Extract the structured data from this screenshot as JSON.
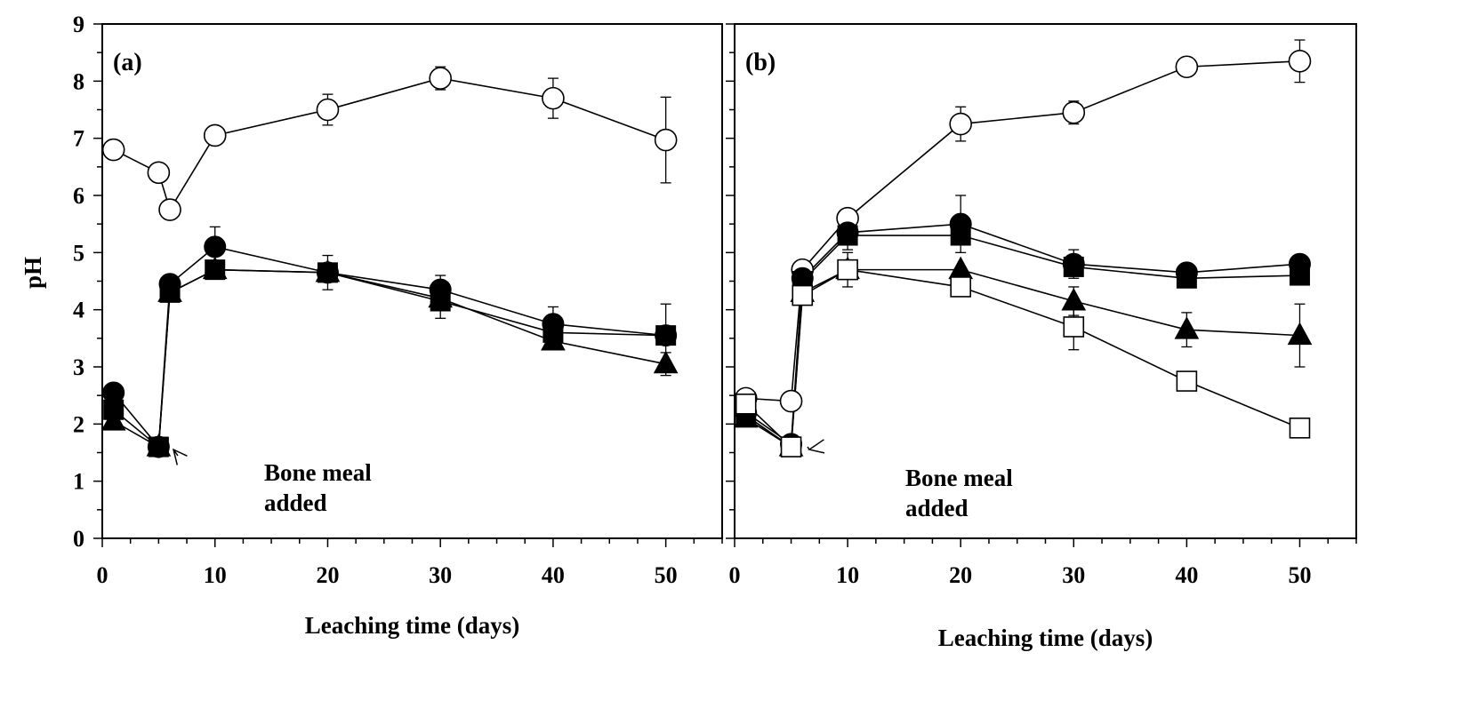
{
  "chart_data": [
    {
      "type": "line",
      "panel_label": "(a)",
      "xlabel": "Leaching time (days)",
      "ylabel": "pH",
      "xlim": [
        0,
        55
      ],
      "ylim": [
        0,
        9
      ],
      "xticks": [
        0,
        10,
        20,
        30,
        40,
        50
      ],
      "yticks": [
        0,
        1,
        2,
        3,
        4,
        5,
        6,
        7,
        8,
        9
      ],
      "grid": false,
      "annotation": {
        "lines": [
          "Bone meal",
          "added"
        ],
        "points_to": {
          "x": 6,
          "y": 1.6
        }
      },
      "series": [
        {
          "marker": "open-circle",
          "x": [
            1,
            5,
            6,
            10,
            20,
            30,
            40,
            50
          ],
          "y": [
            6.8,
            6.4,
            5.75,
            7.05,
            7.5,
            8.05,
            7.7,
            6.97
          ],
          "err": [
            0,
            0,
            0,
            0,
            0.27,
            0.2,
            0.35,
            0.75
          ]
        },
        {
          "marker": "filled-circle",
          "x": [
            1,
            5,
            6,
            10,
            20,
            30,
            40,
            50
          ],
          "y": [
            2.55,
            1.6,
            4.45,
            5.1,
            4.65,
            4.35,
            3.75,
            3.55
          ],
          "err": [
            0,
            0,
            0,
            0.35,
            0.3,
            0.25,
            0.3,
            0.55
          ]
        },
        {
          "marker": "filled-triangle",
          "x": [
            1,
            5,
            6,
            10,
            20,
            30,
            40,
            50
          ],
          "y": [
            2.05,
            1.6,
            4.3,
            4.7,
            4.65,
            4.2,
            3.45,
            3.05
          ],
          "err": [
            0,
            0,
            0,
            0,
            0,
            0,
            0,
            0.2
          ]
        },
        {
          "marker": "filled-square",
          "x": [
            1,
            5,
            6,
            10,
            20,
            30,
            40,
            50
          ],
          "y": [
            2.25,
            1.6,
            4.3,
            4.7,
            4.65,
            4.15,
            3.6,
            3.55
          ],
          "err": [
            0,
            0,
            0,
            0,
            0,
            0.3,
            0,
            0
          ]
        }
      ]
    },
    {
      "type": "line",
      "panel_label": "(b)",
      "xlabel": "Leaching time (days)",
      "ylabel": "",
      "xlim": [
        0,
        55
      ],
      "ylim": [
        0,
        9
      ],
      "xticks": [
        0,
        10,
        20,
        30,
        40,
        50
      ],
      "yticks": [],
      "grid": false,
      "annotation": {
        "lines": [
          "Bone meal",
          "added"
        ],
        "points_to": {
          "x": 6.3,
          "y": 1.6
        }
      },
      "series": [
        {
          "marker": "open-circle",
          "x": [
            1,
            5,
            6,
            10,
            20,
            30,
            40,
            50
          ],
          "y": [
            2.45,
            2.4,
            4.7,
            5.6,
            7.25,
            7.45,
            8.25,
            8.35
          ],
          "err": [
            0,
            0,
            0,
            0,
            0.3,
            0.2,
            0,
            0.37
          ]
        },
        {
          "marker": "filled-circle",
          "x": [
            1,
            5,
            6,
            10,
            20,
            30,
            40,
            50
          ],
          "y": [
            2.2,
            1.65,
            4.55,
            5.35,
            5.5,
            4.8,
            4.65,
            4.8
          ],
          "err": [
            0,
            0,
            0,
            0.3,
            0.5,
            0.25,
            0,
            0
          ]
        },
        {
          "marker": "filled-square",
          "x": [
            1,
            5,
            6,
            10,
            20,
            30,
            40,
            50
          ],
          "y": [
            2.15,
            1.6,
            4.5,
            5.3,
            5.3,
            4.75,
            4.55,
            4.6
          ],
          "err": [
            0,
            0,
            0,
            0,
            0,
            0,
            0,
            0
          ]
        },
        {
          "marker": "filled-triangle",
          "x": [
            1,
            5,
            6,
            10,
            20,
            30,
            40,
            50
          ],
          "y": [
            2.1,
            1.6,
            4.3,
            4.7,
            4.7,
            4.15,
            3.65,
            3.55
          ],
          "err": [
            0,
            0,
            0,
            0.3,
            0,
            0.25,
            0.3,
            0.55
          ]
        },
        {
          "marker": "open-square",
          "x": [
            1,
            5,
            6,
            10,
            20,
            30,
            40,
            50
          ],
          "y": [
            2.35,
            1.6,
            4.25,
            4.7,
            4.4,
            3.7,
            2.75,
            1.93
          ],
          "err": [
            0,
            0,
            0,
            0,
            0,
            0.4,
            0,
            0
          ]
        }
      ]
    }
  ]
}
